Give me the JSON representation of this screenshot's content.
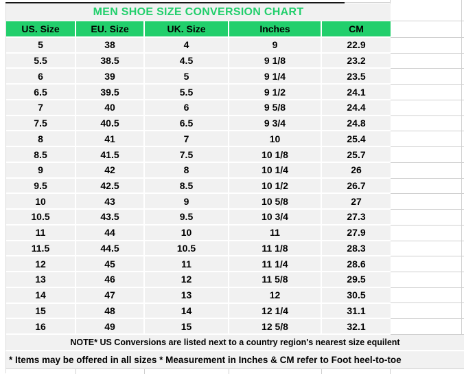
{
  "title": "MEN SHOE SIZE CONVERSION CHART",
  "colors": {
    "header_green": "#22cf6c",
    "title_green": "#22cf6c",
    "cell_gray": "#f1f1f1",
    "gridline_gray": "#cfcfcf",
    "text_black": "#000000"
  },
  "table": {
    "headers": [
      "US. Size",
      "EU. Size",
      "UK. Size",
      "Inches",
      "CM"
    ],
    "rows": [
      {
        "us": "5",
        "eu": "38",
        "uk": "4",
        "inches": "9",
        "cm": "22.9"
      },
      {
        "us": "5.5",
        "eu": "38.5",
        "uk": "4.5",
        "inches": "9 1/8",
        "cm": "23.2"
      },
      {
        "us": "6",
        "eu": "39",
        "uk": "5",
        "inches": "9 1/4",
        "cm": "23.5"
      },
      {
        "us": "6.5",
        "eu": "39.5",
        "uk": "5.5",
        "inches": "9 1/2",
        "cm": "24.1"
      },
      {
        "us": "7",
        "eu": "40",
        "uk": "6",
        "inches": "9 5/8",
        "cm": "24.4"
      },
      {
        "us": "7.5",
        "eu": "40.5",
        "uk": "6.5",
        "inches": "9 3/4",
        "cm": "24.8"
      },
      {
        "us": "8",
        "eu": "41",
        "uk": "7",
        "inches": "10",
        "cm": "25.4"
      },
      {
        "us": "8.5",
        "eu": "41.5",
        "uk": "7.5",
        "inches": "10 1/8",
        "cm": "25.7"
      },
      {
        "us": "9",
        "eu": "42",
        "uk": "8",
        "inches": "10 1/4",
        "cm": "26"
      },
      {
        "us": "9.5",
        "eu": "42.5",
        "uk": "8.5",
        "inches": "10 1/2",
        "cm": "26.7"
      },
      {
        "us": "10",
        "eu": "43",
        "uk": "9",
        "inches": "10 5/8",
        "cm": "27"
      },
      {
        "us": "10.5",
        "eu": "43.5",
        "uk": "9.5",
        "inches": "10 3/4",
        "cm": "27.3"
      },
      {
        "us": "11",
        "eu": "44",
        "uk": "10",
        "inches": "11",
        "cm": "27.9"
      },
      {
        "us": "11.5",
        "eu": "44.5",
        "uk": "10.5",
        "inches": "11 1/8",
        "cm": "28.3"
      },
      {
        "us": "12",
        "eu": "45",
        "uk": "11",
        "inches": "11 1/4",
        "cm": "28.6"
      },
      {
        "us": "13",
        "eu": "46",
        "uk": "12",
        "inches": "11 5/8",
        "cm": "29.5"
      },
      {
        "us": "14",
        "eu": "47",
        "uk": "13",
        "inches": "12",
        "cm": "30.5"
      },
      {
        "us": "15",
        "eu": "48",
        "uk": "14",
        "inches": "12 1/4",
        "cm": "31.1"
      },
      {
        "us": "16",
        "eu": "49",
        "uk": "15",
        "inches": "12 5/8",
        "cm": "32.1"
      }
    ]
  },
  "notes": {
    "note1": "NOTE* US Conversions are listed next to a country region's nearest size equilent",
    "note2": "* Items may be offered in all sizes * Measurement in Inches & CM refer to Foot heel-to-toe"
  }
}
